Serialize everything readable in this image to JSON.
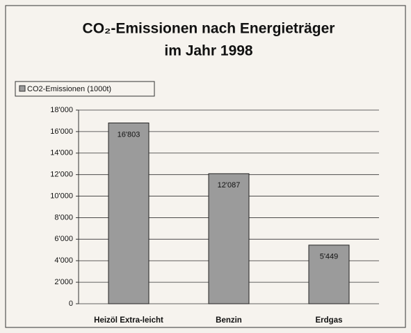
{
  "chart_data": {
    "type": "bar",
    "title": [
      "CO₂-Emissionen nach Energieträger",
      "im Jahr 1998"
    ],
    "categories": [
      "Heizöl Extra-leicht",
      "Benzin",
      "Erdgas"
    ],
    "series": [
      {
        "name": "CO2-Emissionen (1000t)",
        "color": "#9b9b9b",
        "values": [
          16803,
          12087,
          5449
        ],
        "value_labels": [
          "16'803",
          "12'087",
          "5'449"
        ]
      }
    ],
    "ylim": [
      0,
      18000
    ],
    "yticks": [
      0,
      {
        "value": 2000,
        "label": "2'000"
      },
      {
        "value": 4000,
        "label": "4'000"
      },
      {
        "value": 6000,
        "label": "6'000"
      },
      {
        "value": 8000,
        "label": "8'000"
      },
      {
        "value": 10000,
        "label": "10'000"
      },
      {
        "value": 12000,
        "label": "12'000"
      },
      {
        "value": 14000,
        "label": "14'000"
      },
      {
        "value": 16000,
        "label": "16'000"
      },
      {
        "value": 18000,
        "label": "18'000"
      }
    ],
    "grid": true,
    "legend": "top-left"
  }
}
